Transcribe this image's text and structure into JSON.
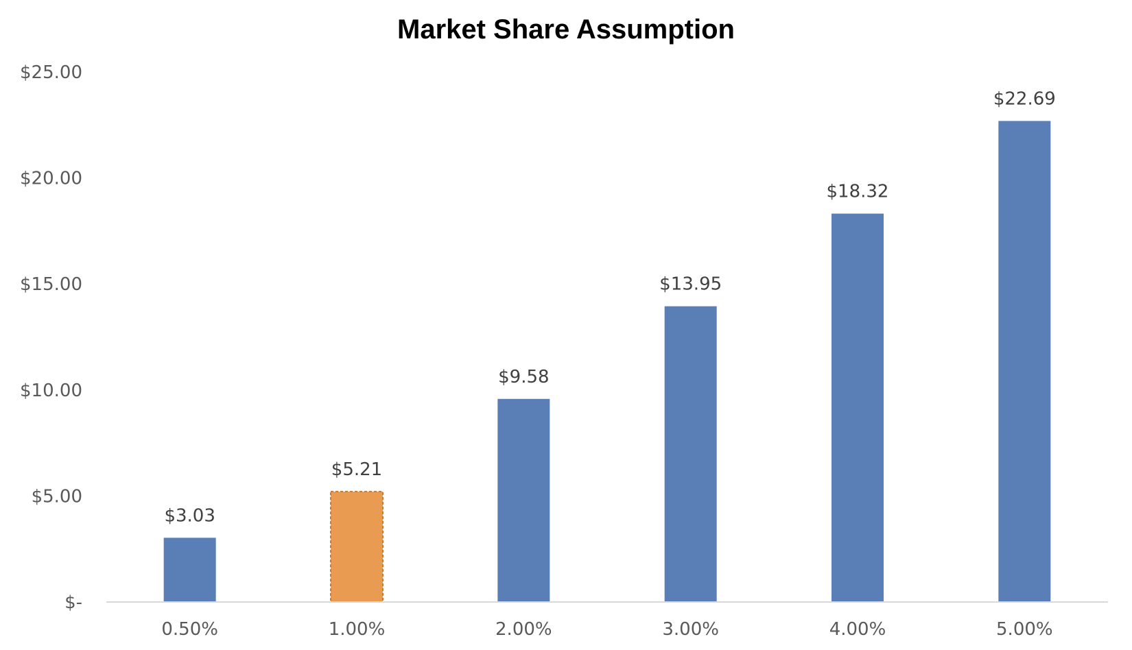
{
  "chart_data": {
    "type": "bar",
    "title": "Market Share Assumption",
    "xlabel": "",
    "ylabel": "",
    "categories": [
      "0.50%",
      "1.00%",
      "2.00%",
      "3.00%",
      "4.00%",
      "5.00%"
    ],
    "values": [
      3.03,
      5.21,
      9.58,
      13.95,
      18.32,
      22.69
    ],
    "data_labels": [
      "$3.03",
      "$5.21",
      "$9.58",
      "$13.95",
      "$18.32",
      "$22.69"
    ],
    "ylim": [
      0,
      25
    ],
    "y_ticks": [
      0,
      5,
      10,
      15,
      20,
      25
    ],
    "y_tick_labels": [
      "$-",
      "$5.00",
      "$10.00",
      "$15.00",
      "$20.00",
      "$25.00"
    ],
    "grid": false,
    "legend": "none",
    "highlighted_category": "1.00%",
    "colors": {
      "bar": "#5a7fb6",
      "highlight": "#e99b52",
      "highlight_border": "#c97a32",
      "axis": "#d9d9d9"
    }
  }
}
